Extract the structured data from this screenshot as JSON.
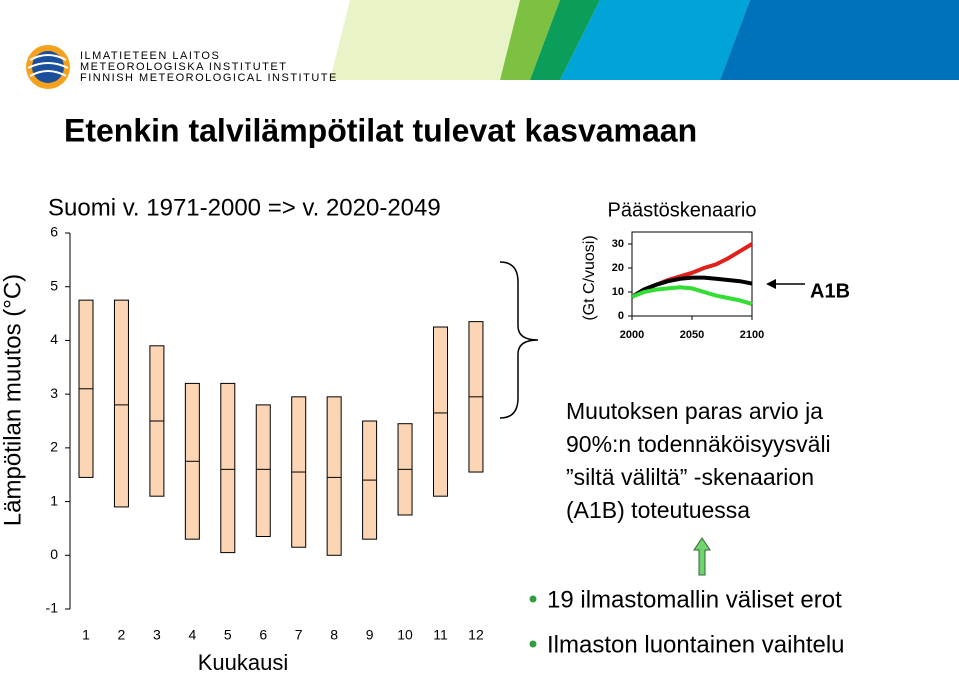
{
  "header": {
    "logo_lines": [
      "ILMATIETEEN LAITOS",
      "METEOROLOGISKA INSTITUTET",
      "FINNISH METEOROLOGICAL INSTITUTE"
    ],
    "title": "Etenkin talvilämpötilat tulevat kasvamaan"
  },
  "chart_data": [
    {
      "type": "box",
      "title": "Suomi v. 1971-2000 => v. 2020-2049",
      "y_label": "Lämpötilan muutos (°C)",
      "x_label": "Kuukausi",
      "categories": [
        "1",
        "2",
        "3",
        "4",
        "5",
        "6",
        "7",
        "8",
        "9",
        "10",
        "11",
        "12"
      ],
      "low": [
        1.45,
        0.9,
        1.1,
        0.3,
        0.05,
        0.35,
        0.15,
        0,
        0.3,
        0.75,
        1.1,
        1.55
      ],
      "median": [
        3.1,
        2.8,
        2.5,
        1.75,
        1.6,
        1.6,
        1.55,
        1.45,
        1.4,
        1.6,
        2.65,
        2.95
      ],
      "high": [
        4.75,
        4.75,
        3.9,
        3.2,
        3.2,
        2.8,
        2.95,
        2.95,
        2.5,
        2.45,
        4.25,
        4.35
      ],
      "color": "#fcd5b4",
      "ylim": [
        -1,
        6
      ],
      "yticks": [
        -1,
        0,
        1,
        2,
        3,
        4,
        5,
        6
      ]
    },
    {
      "type": "line",
      "title": "Päästöskenaario",
      "y_label": "(Gt C/vuosi)",
      "annotation": "A1B",
      "x": [
        2000,
        2010,
        2020,
        2030,
        2040,
        2050,
        2060,
        2070,
        2080,
        2090,
        2100
      ],
      "series": [
        {
          "color": "#e0201b",
          "values": [
            8,
            11,
            13,
            15,
            16.5,
            18,
            20,
            21.5,
            24,
            27,
            30
          ]
        },
        {
          "color": "#000000",
          "values": [
            8,
            11,
            13,
            14.5,
            15.5,
            16,
            16,
            15.5,
            15,
            14.5,
            13.5
          ]
        },
        {
          "color": "#33dd33",
          "values": [
            8,
            10,
            11,
            11.5,
            12,
            11.5,
            10,
            8.5,
            7.5,
            6.5,
            5
          ]
        }
      ],
      "xlim": [
        2000,
        2100
      ],
      "xticks": [
        2000,
        2050,
        2100
      ],
      "ylim": [
        0,
        35
      ],
      "yticks": [
        0,
        10,
        20,
        30
      ]
    }
  ],
  "notes": {
    "description": [
      "Muutoksen paras arvio ja",
      "90%:n todennäköisyysväli",
      " ”siltä väliltä” -skenaarion",
      "(A1B) toteutuessa"
    ],
    "bullets": [
      "19 ilmastomallin väliset erot",
      "Ilmaston luontainen vaihtelu"
    ]
  }
}
